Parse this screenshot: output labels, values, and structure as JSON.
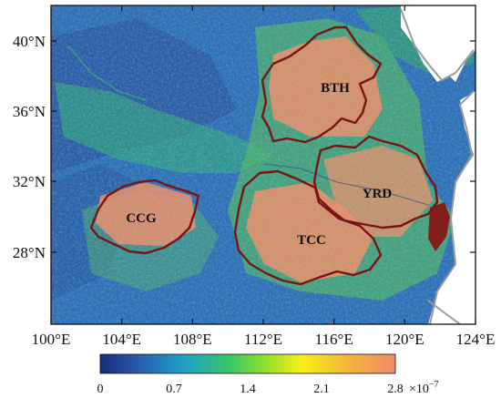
{
  "map": {
    "lat_ticks": [
      "40°N",
      "36°N",
      "32°N",
      "28°N"
    ],
    "lon_ticks": [
      "100°E",
      "104°E",
      "108°E",
      "112°E",
      "116°E",
      "120°E",
      "124°E"
    ],
    "regions": [
      "BTH",
      "YRD",
      "CCG",
      "TCC"
    ]
  },
  "colorbar": {
    "ticks": [
      "0",
      "0.7",
      "1.4",
      "2.1",
      "2.8"
    ],
    "scale_label": "×10",
    "scale_exponent": "−7",
    "colors": [
      "#1a2a7a",
      "#2a5fb0",
      "#1f9fc8",
      "#35c46a",
      "#9be02a",
      "#f5f018",
      "#f7b43a",
      "#f28a6a"
    ]
  },
  "colors": {
    "background_fill": "#2a64b4",
    "boundary": "#7a1414",
    "coastline": "#9a9a9a",
    "ocean": "#ffffff"
  }
}
